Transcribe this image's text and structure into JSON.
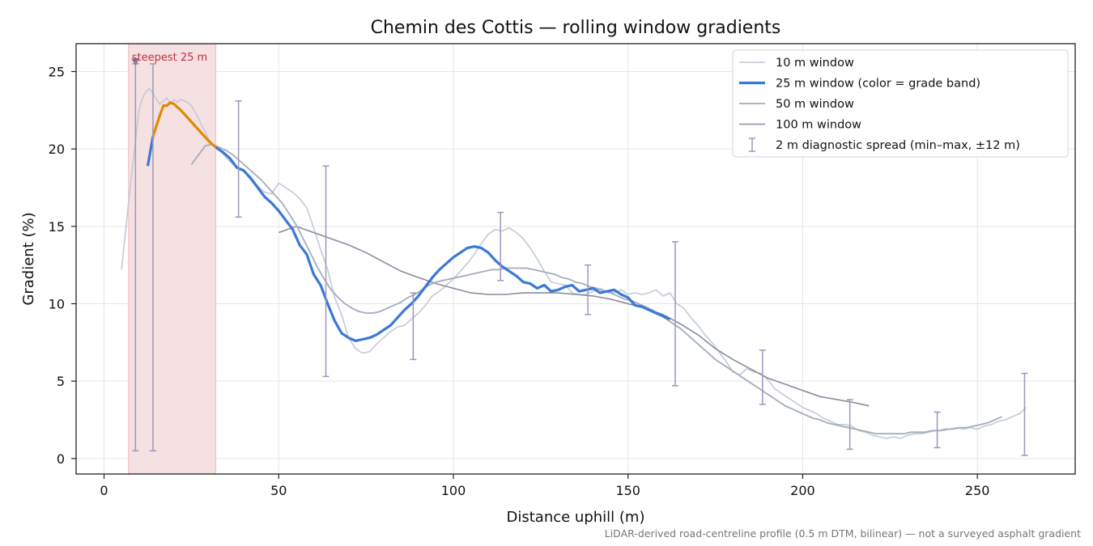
{
  "chart_data": {
    "type": "line",
    "title": "Chemin des Cottis — rolling window gradients",
    "xlabel": "Distance uphill (m)",
    "ylabel": "Gradient (%)",
    "xlim": [
      -8,
      278
    ],
    "ylim": [
      -1,
      26.8
    ],
    "xticks": [
      0,
      50,
      100,
      150,
      200,
      250
    ],
    "yticks": [
      0,
      5,
      10,
      15,
      20,
      25
    ],
    "grid": true,
    "legend_position": "top-right",
    "footnote": "LiDAR-derived road-centreline profile (0.5 m DTM, bilinear) — not a surveyed asphalt gradient",
    "highlight": {
      "label": "steepest 25 m",
      "x_start": 7,
      "x_end": 32,
      "marker": [
        9,
        25.6
      ],
      "color": "#e8b4b8"
    },
    "colors": {
      "w10": "#c3cad6",
      "w25": "#3a78d8",
      "w25_steep": "#e08a00",
      "w50": "#a3adbb",
      "w100": "#868e9c",
      "errbar": "#9e97b8",
      "highlight_text": "#c03040"
    },
    "series": [
      {
        "name": "10 m window",
        "x": [
          5,
          7,
          9,
          10,
          11,
          12,
          13,
          14,
          15,
          16,
          17,
          18,
          19,
          20,
          21,
          22,
          23,
          24,
          25,
          26,
          27,
          28,
          29,
          30,
          31,
          32,
          34,
          36,
          38,
          40,
          42,
          44,
          46,
          48,
          50,
          52,
          54,
          56,
          58,
          60,
          62,
          64,
          66,
          68,
          70,
          72,
          74,
          76,
          78,
          80,
          82,
          84,
          86,
          88,
          90,
          92,
          94,
          96,
          98,
          100,
          102,
          104,
          106,
          108,
          110,
          112,
          114,
          116,
          118,
          120,
          122,
          124,
          126,
          128,
          130,
          132,
          134,
          136,
          138,
          140,
          142,
          144,
          146,
          148,
          150,
          152,
          154,
          156,
          158,
          160,
          162,
          164,
          166,
          168,
          170,
          172,
          174,
          176,
          178,
          180,
          182,
          184,
          186,
          188,
          190,
          192,
          194,
          196,
          198,
          200,
          202,
          204,
          206,
          208,
          210,
          212,
          214,
          216,
          218,
          220,
          222,
          224,
          226,
          228,
          230,
          232,
          234,
          236,
          238,
          240,
          242,
          244,
          246,
          248,
          250,
          252,
          254,
          256,
          258,
          260,
          262,
          264
        ],
        "y": [
          12.2,
          16.5,
          20.5,
          22.5,
          23.3,
          23.7,
          23.9,
          23.6,
          23.2,
          22.9,
          23.1,
          23.3,
          22.9,
          23.2,
          23,
          23.2,
          23.1,
          23,
          22.8,
          22.4,
          22,
          21.5,
          21.1,
          20.6,
          20.3,
          20.1,
          19.7,
          19.2,
          18.8,
          18.6,
          18.2,
          17.6,
          17.2,
          17.1,
          17.8,
          17.5,
          17.2,
          16.8,
          16.2,
          14.9,
          13.5,
          12.2,
          10.4,
          9.3,
          7.8,
          7.1,
          6.8,
          6.9,
          7.4,
          7.8,
          8.2,
          8.5,
          8.6,
          9,
          9.4,
          9.9,
          10.5,
          10.8,
          11.2,
          11.6,
          12.1,
          12.6,
          13.2,
          13.9,
          14.5,
          14.8,
          14.7,
          14.9,
          14.6,
          14.2,
          13.6,
          12.9,
          12.1,
          11.4,
          11.3,
          11.2,
          10.7,
          10.6,
          10.6,
          10.8,
          11,
          10.8,
          10.7,
          10.9,
          10.6,
          10.7,
          10.6,
          10.7,
          10.9,
          10.5,
          10.7,
          10,
          9.7,
          9.1,
          8.6,
          8,
          7.5,
          6.9,
          6.3,
          5.6,
          5.4,
          5.8,
          5.6,
          5.5,
          5.1,
          4.5,
          4.2,
          3.9,
          3.6,
          3.3,
          3.1,
          2.9,
          2.6,
          2.4,
          2.2,
          2.2,
          2.1,
          1.8,
          1.7,
          1.5,
          1.4,
          1.3,
          1.4,
          1.3,
          1.5,
          1.6,
          1.6,
          1.7,
          1.8,
          1.8,
          1.9,
          2,
          1.9,
          2,
          1.9,
          2.1,
          2.2,
          2.4,
          2.5,
          2.7,
          2.9,
          3.3
        ]
      },
      {
        "name": "25 m window (color = grade band)",
        "x": [
          12.5,
          14,
          16,
          17,
          18,
          19,
          20,
          22,
          24,
          26,
          28,
          30,
          32,
          34,
          36,
          38,
          40,
          42,
          44,
          46,
          48,
          50,
          52,
          54,
          56,
          58,
          60,
          62,
          64,
          66,
          68,
          70,
          72,
          74,
          76,
          78,
          80,
          82,
          84,
          86,
          88,
          90,
          92,
          94,
          96,
          98,
          100,
          102,
          104,
          106,
          108,
          110,
          112,
          114,
          116,
          118,
          120,
          122,
          124,
          126,
          128,
          130,
          132,
          134,
          136,
          138,
          140,
          142,
          144,
          146,
          148,
          150,
          152,
          154,
          156,
          158,
          160,
          162
        ],
        "y": [
          18.9,
          20.8,
          22.2,
          22.8,
          22.8,
          23,
          22.9,
          22.5,
          22,
          21.5,
          21,
          20.5,
          20.1,
          19.8,
          19.4,
          18.8,
          18.6,
          18.1,
          17.5,
          16.9,
          16.5,
          16,
          15.4,
          14.8,
          13.8,
          13.2,
          11.9,
          11.2,
          10,
          8.9,
          8.1,
          7.8,
          7.6,
          7.7,
          7.8,
          8,
          8.3,
          8.6,
          9.1,
          9.6,
          10,
          10.5,
          11.1,
          11.7,
          12.2,
          12.6,
          13,
          13.3,
          13.6,
          13.7,
          13.6,
          13.3,
          12.8,
          12.4,
          12.1,
          11.8,
          11.4,
          11.3,
          11,
          11.2,
          10.8,
          10.9,
          11.1,
          11.2,
          10.8,
          10.9,
          11,
          10.7,
          10.8,
          10.9,
          10.6,
          10.4,
          9.9,
          9.8,
          9.6,
          9.4,
          9.2,
          9
        ]
      },
      {
        "name": "50 m window",
        "x": [
          25,
          27,
          29,
          31,
          33,
          35,
          37,
          39,
          41,
          43,
          45,
          47,
          49,
          51,
          53,
          55,
          57,
          59,
          61,
          63,
          65,
          67,
          69,
          71,
          73,
          75,
          77,
          79,
          81,
          83,
          85,
          87,
          89,
          91,
          93,
          95,
          97,
          99,
          101,
          103,
          105,
          107,
          109,
          111,
          113,
          115,
          117,
          119,
          121,
          123,
          125,
          127,
          129,
          131,
          133,
          135,
          137,
          139,
          141,
          143,
          145,
          147,
          149,
          151,
          153,
          155,
          157,
          159,
          161,
          163,
          165,
          167,
          169,
          171,
          173,
          175,
          177,
          179,
          181,
          183,
          185,
          187,
          189,
          191,
          193,
          195,
          197,
          199,
          201,
          203,
          205,
          207,
          209,
          211,
          213,
          215,
          217,
          219,
          221,
          223,
          225,
          227,
          229,
          231,
          233,
          235,
          237,
          239,
          241,
          243,
          245,
          247,
          249,
          251,
          253,
          255,
          257
        ],
        "y": [
          19,
          19.6,
          20.2,
          20.3,
          20.1,
          19.9,
          19.6,
          19.2,
          18.8,
          18.4,
          18,
          17.5,
          17,
          16.5,
          15.8,
          15.1,
          14.2,
          13.3,
          12.4,
          11.6,
          10.9,
          10.4,
          10,
          9.7,
          9.5,
          9.4,
          9.4,
          9.5,
          9.7,
          9.9,
          10.1,
          10.4,
          10.6,
          10.9,
          11.2,
          11.4,
          11.5,
          11.6,
          11.7,
          11.8,
          11.9,
          12,
          12.1,
          12.2,
          12.2,
          12.3,
          12.3,
          12.3,
          12.3,
          12.2,
          12.1,
          12,
          11.9,
          11.7,
          11.6,
          11.4,
          11.3,
          11.1,
          11,
          10.8,
          10.7,
          10.5,
          10.3,
          10.2,
          10,
          9.8,
          9.6,
          9.3,
          9,
          8.7,
          8.4,
          8,
          7.6,
          7.2,
          6.8,
          6.4,
          6.1,
          5.8,
          5.5,
          5.2,
          4.9,
          4.6,
          4.3,
          4,
          3.7,
          3.4,
          3.2,
          3,
          2.8,
          2.6,
          2.5,
          2.3,
          2.2,
          2.1,
          2,
          1.9,
          1.8,
          1.7,
          1.6,
          1.6,
          1.6,
          1.6,
          1.6,
          1.7,
          1.7,
          1.7,
          1.8,
          1.8,
          1.9,
          1.9,
          2,
          2,
          2.1,
          2.2,
          2.3,
          2.5,
          2.7
        ]
      },
      {
        "name": "100 m window",
        "x": [
          50,
          55,
          60,
          65,
          70,
          75,
          80,
          85,
          90,
          95,
          100,
          105,
          110,
          115,
          120,
          125,
          130,
          135,
          140,
          145,
          150,
          155,
          160,
          165,
          170,
          175,
          180,
          185,
          190,
          195,
          200,
          205,
          210,
          215,
          219
        ],
        "y": [
          14.6,
          15,
          14.6,
          14.2,
          13.8,
          13.3,
          12.7,
          12.1,
          11.7,
          11.3,
          11,
          10.7,
          10.6,
          10.6,
          10.7,
          10.7,
          10.7,
          10.6,
          10.5,
          10.3,
          10,
          9.7,
          9.3,
          8.7,
          8,
          7.1,
          6.4,
          5.8,
          5.2,
          4.8,
          4.4,
          4,
          3.8,
          3.6,
          3.4
        ]
      },
      {
        "name": "2 m diagnostic spread (min–max, ±12 m)",
        "x": [
          9,
          14,
          38.5,
          63.5,
          88.5,
          113.5,
          138.5,
          163.5,
          188.5,
          213.5,
          238.5,
          263.5
        ],
        "ymin": [
          0.5,
          0.5,
          15.6,
          5.3,
          6.4,
          11.5,
          9.3,
          4.7,
          3.5,
          0.6,
          0.7,
          0.2
        ],
        "ymax": [
          25.5,
          25.5,
          23.1,
          18.9,
          10.7,
          15.9,
          12.5,
          14,
          7,
          3.8,
          3,
          5.5
        ]
      }
    ]
  }
}
